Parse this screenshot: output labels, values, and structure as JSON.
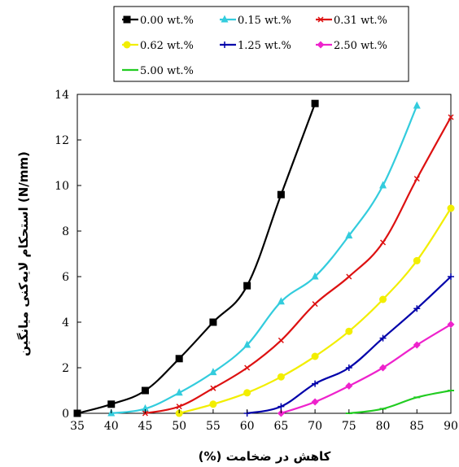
{
  "chart_data": {
    "type": "line",
    "title": "",
    "xlabel": "(%) کاهش در ضخامت",
    "ylabel": "استحکام لایه‌کنی میانگین (N/mm)",
    "xlim": [
      35,
      90
    ],
    "ylim": [
      0,
      14
    ],
    "xticks": [
      35,
      40,
      45,
      50,
      55,
      60,
      65,
      70,
      75,
      80,
      85,
      90
    ],
    "yticks": [
      0,
      2,
      4,
      6,
      8,
      10,
      12,
      14
    ],
    "grid": false,
    "legend_position": "top",
    "series": [
      {
        "name": "0.00 wt.%",
        "color": "#000000",
        "marker": "square",
        "x": [
          35,
          40,
          45,
          50,
          55,
          60,
          65,
          70
        ],
        "y": [
          0,
          0.4,
          1.0,
          2.4,
          4.0,
          5.6,
          9.6,
          13.6
        ]
      },
      {
        "name": "0.15 wt.%",
        "color": "#33ccdd",
        "marker": "triangle",
        "x": [
          40,
          45,
          50,
          55,
          60,
          65,
          70,
          75,
          80,
          85
        ],
        "y": [
          0,
          0.2,
          0.9,
          1.8,
          3.0,
          4.9,
          6.0,
          7.8,
          10.0,
          13.5
        ]
      },
      {
        "name": "0.31 wt.%",
        "color": "#dd1111",
        "marker": "x",
        "x": [
          45,
          50,
          55,
          60,
          65,
          70,
          75,
          80,
          85,
          90
        ],
        "y": [
          0,
          0.3,
          1.1,
          2.0,
          3.2,
          4.8,
          6.0,
          7.5,
          10.3,
          13.0
        ]
      },
      {
        "name": "0.62 wt.%",
        "color": "#f2ee00",
        "marker": "circle",
        "x": [
          50,
          55,
          60,
          65,
          70,
          75,
          80,
          85,
          90
        ],
        "y": [
          0,
          0.4,
          0.9,
          1.6,
          2.5,
          3.6,
          5.0,
          6.7,
          9.0
        ]
      },
      {
        "name": "1.25 wt.%",
        "color": "#0000aa",
        "marker": "plus",
        "x": [
          60,
          65,
          70,
          75,
          80,
          85,
          90
        ],
        "y": [
          0,
          0.3,
          1.3,
          2.0,
          3.3,
          4.6,
          6.0
        ]
      },
      {
        "name": "2.50 wt.%",
        "color": "#ee22cc",
        "marker": "diamond",
        "x": [
          65,
          70,
          75,
          80,
          85,
          90
        ],
        "y": [
          0,
          0.5,
          1.2,
          2.0,
          3.0,
          3.9
        ]
      },
      {
        "name": "5.00 wt.%",
        "color": "#22cc22",
        "marker": "dash",
        "x": [
          75,
          80,
          85,
          90
        ],
        "y": [
          0,
          0.2,
          0.7,
          1.0
        ]
      }
    ]
  }
}
